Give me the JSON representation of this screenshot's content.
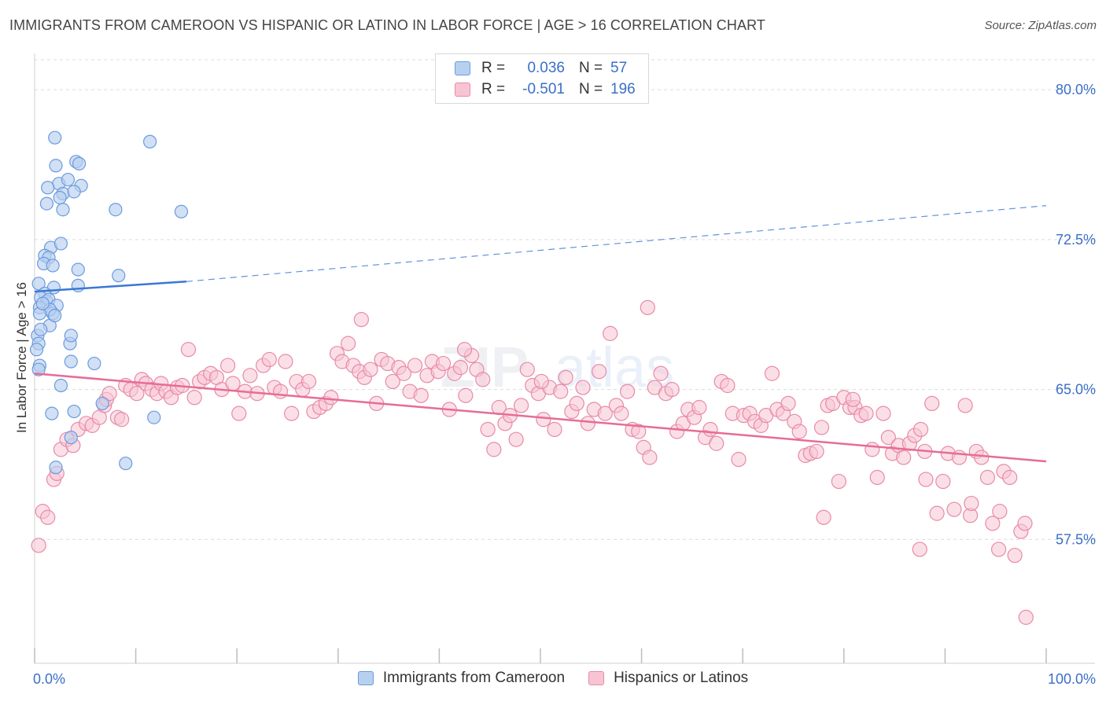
{
  "title": "IMMIGRANTS FROM CAMEROON VS HISPANIC OR LATINO IN LABOR FORCE | AGE > 16 CORRELATION CHART",
  "source": "Source: ZipAtlas.com",
  "legend": {
    "rows": [
      {
        "r_label": "R =",
        "r_value": "0.036",
        "n_label": "N =",
        "n_value": "57"
      },
      {
        "r_label": "R =",
        "r_value": "-0.501",
        "n_label": "N =",
        "n_value": "196"
      }
    ]
  },
  "bottom_legend": {
    "series1": "Immigrants from Cameroon",
    "series2": "Hispanics or Latinos"
  },
  "colors": {
    "blue": "#3a78d4",
    "blue_fill": "#b8d0f0",
    "pink": "#e76c96",
    "pink_fill": "#f8c4d4",
    "axis_text": "#3b6fc8"
  },
  "chart_data": {
    "type": "scatter",
    "title": "IMMIGRANTS FROM CAMEROON VS HISPANIC OR LATINO IN LABOR FORCE | AGE > 16 CORRELATION CHART",
    "xlabel": "",
    "ylabel": "In Labor Force | Age > 16",
    "xlim": [
      0,
      100
    ],
    "ylim": [
      51.3,
      81.5
    ],
    "x_tick_labels": [
      "0.0%",
      "100.0%"
    ],
    "y_ticks": [
      57.5,
      65.0,
      72.5,
      80.0
    ],
    "y_tick_labels": [
      "57.5%",
      "65.0%",
      "72.5%",
      "80.0%"
    ],
    "grid": true,
    "legend_position": "top-center",
    "series": [
      {
        "name": "Immigrants from Cameroon",
        "r": 0.036,
        "n": 57,
        "trend": {
          "x_solid": [
            0,
            15
          ],
          "y_solid": [
            69.9,
            70.4
          ],
          "x_dashed_end": 100,
          "y_dashed_end": 74.2
        },
        "points": [
          [
            2.0,
            77.6
          ],
          [
            11.4,
            77.4
          ],
          [
            4.1,
            76.4
          ],
          [
            2.1,
            76.2
          ],
          [
            4.4,
            76.3
          ],
          [
            2.4,
            75.3
          ],
          [
            1.3,
            75.1
          ],
          [
            3.3,
            75.5
          ],
          [
            4.6,
            75.2
          ],
          [
            1.2,
            74.3
          ],
          [
            2.8,
            74.8
          ],
          [
            3.9,
            74.9
          ],
          [
            2.5,
            74.6
          ],
          [
            2.8,
            74.0
          ],
          [
            8.0,
            74.0
          ],
          [
            14.5,
            73.9
          ],
          [
            1.6,
            72.1
          ],
          [
            2.6,
            72.3
          ],
          [
            1.0,
            71.7
          ],
          [
            1.4,
            71.6
          ],
          [
            0.9,
            71.3
          ],
          [
            1.8,
            71.2
          ],
          [
            4.3,
            71.0
          ],
          [
            8.3,
            70.7
          ],
          [
            0.4,
            70.3
          ],
          [
            1.9,
            70.1
          ],
          [
            4.3,
            70.2
          ],
          [
            1.0,
            69.8
          ],
          [
            0.6,
            69.6
          ],
          [
            1.2,
            69.4
          ],
          [
            1.4,
            69.5
          ],
          [
            0.5,
            69.1
          ],
          [
            2.2,
            69.2
          ],
          [
            1.8,
            68.8
          ],
          [
            1.5,
            69.0
          ],
          [
            0.5,
            68.8
          ],
          [
            1.5,
            68.2
          ],
          [
            0.3,
            67.7
          ],
          [
            0.4,
            67.3
          ],
          [
            3.5,
            67.3
          ],
          [
            3.6,
            67.7
          ],
          [
            0.2,
            67.0
          ],
          [
            0.5,
            66.2
          ],
          [
            3.6,
            66.4
          ],
          [
            5.9,
            66.3
          ],
          [
            0.4,
            66.0
          ],
          [
            2.6,
            65.2
          ],
          [
            1.7,
            63.8
          ],
          [
            3.9,
            63.9
          ],
          [
            6.7,
            64.3
          ],
          [
            11.8,
            63.6
          ],
          [
            3.6,
            62.6
          ],
          [
            2.1,
            61.1
          ],
          [
            9.0,
            61.3
          ],
          [
            0.8,
            69.3
          ],
          [
            2.0,
            68.7
          ],
          [
            0.6,
            68.0
          ]
        ]
      },
      {
        "name": "Hispanics or Latinos",
        "r": -0.501,
        "n": 196,
        "trend": {
          "x": [
            0,
            100
          ],
          "y": [
            65.8,
            61.4
          ]
        },
        "points": [
          [
            0.4,
            57.2
          ],
          [
            0.8,
            58.9
          ],
          [
            1.3,
            58.6
          ],
          [
            1.9,
            60.5
          ],
          [
            2.2,
            60.8
          ],
          [
            2.6,
            62.0
          ],
          [
            3.2,
            62.5
          ],
          [
            3.8,
            62.2
          ],
          [
            4.3,
            63.0
          ],
          [
            5.1,
            63.3
          ],
          [
            5.7,
            63.2
          ],
          [
            6.4,
            63.6
          ],
          [
            6.9,
            64.2
          ],
          [
            7.1,
            64.5
          ],
          [
            7.4,
            64.8
          ],
          [
            8.2,
            63.6
          ],
          [
            8.6,
            63.5
          ],
          [
            9.0,
            65.2
          ],
          [
            9.5,
            65.0
          ],
          [
            10.1,
            64.8
          ],
          [
            10.6,
            65.5
          ],
          [
            11.0,
            65.3
          ],
          [
            11.6,
            65.0
          ],
          [
            12.1,
            64.8
          ],
          [
            12.5,
            65.3
          ],
          [
            13.0,
            64.9
          ],
          [
            13.5,
            64.6
          ],
          [
            14.1,
            65.1
          ],
          [
            14.6,
            65.2
          ],
          [
            15.2,
            67.0
          ],
          [
            15.8,
            64.6
          ],
          [
            16.3,
            65.4
          ],
          [
            16.8,
            65.6
          ],
          [
            17.4,
            65.8
          ],
          [
            18.0,
            65.6
          ],
          [
            18.5,
            65.0
          ],
          [
            19.1,
            66.2
          ],
          [
            19.6,
            65.3
          ],
          [
            20.2,
            63.8
          ],
          [
            20.8,
            64.9
          ],
          [
            21.3,
            65.7
          ],
          [
            22.0,
            64.8
          ],
          [
            22.6,
            66.2
          ],
          [
            23.2,
            66.5
          ],
          [
            23.7,
            65.1
          ],
          [
            24.3,
            64.9
          ],
          [
            24.8,
            66.4
          ],
          [
            25.4,
            63.8
          ],
          [
            25.9,
            65.4
          ],
          [
            26.5,
            65.0
          ],
          [
            27.1,
            65.4
          ],
          [
            27.6,
            63.9
          ],
          [
            28.2,
            64.1
          ],
          [
            28.8,
            64.3
          ],
          [
            29.3,
            64.6
          ],
          [
            29.9,
            66.8
          ],
          [
            30.4,
            66.4
          ],
          [
            31.0,
            67.3
          ],
          [
            31.5,
            66.2
          ],
          [
            32.1,
            65.9
          ],
          [
            32.6,
            65.6
          ],
          [
            32.3,
            68.5
          ],
          [
            33.2,
            66.0
          ],
          [
            33.8,
            64.3
          ],
          [
            34.3,
            66.5
          ],
          [
            34.9,
            66.3
          ],
          [
            35.4,
            65.4
          ],
          [
            36.0,
            66.1
          ],
          [
            36.5,
            65.8
          ],
          [
            37.1,
            64.9
          ],
          [
            37.6,
            66.2
          ],
          [
            38.2,
            64.7
          ],
          [
            38.8,
            65.7
          ],
          [
            39.3,
            66.4
          ],
          [
            39.9,
            65.9
          ],
          [
            40.4,
            66.3
          ],
          [
            41.0,
            64.0
          ],
          [
            41.5,
            65.8
          ],
          [
            42.1,
            66.1
          ],
          [
            42.6,
            64.7
          ],
          [
            43.2,
            66.7
          ],
          [
            43.7,
            66.0
          ],
          [
            42.5,
            67.0
          ],
          [
            44.3,
            65.5
          ],
          [
            44.8,
            63.0
          ],
          [
            45.4,
            62.0
          ],
          [
            45.9,
            64.1
          ],
          [
            46.5,
            63.3
          ],
          [
            47.0,
            63.7
          ],
          [
            47.6,
            62.5
          ],
          [
            48.1,
            64.2
          ],
          [
            48.7,
            66.0
          ],
          [
            49.2,
            65.2
          ],
          [
            49.8,
            64.8
          ],
          [
            50.3,
            63.5
          ],
          [
            50.9,
            65.1
          ],
          [
            51.4,
            63.0
          ],
          [
            52.0,
            64.9
          ],
          [
            52.5,
            65.6
          ],
          [
            53.1,
            63.9
          ],
          [
            53.6,
            64.3
          ],
          [
            54.2,
            65.1
          ],
          [
            54.7,
            63.3
          ],
          [
            55.3,
            64.0
          ],
          [
            55.8,
            65.9
          ],
          [
            56.4,
            63.8
          ],
          [
            56.9,
            67.8
          ],
          [
            57.5,
            64.2
          ],
          [
            58.0,
            63.8
          ],
          [
            58.6,
            64.9
          ],
          [
            59.1,
            63.0
          ],
          [
            59.7,
            62.9
          ],
          [
            60.2,
            62.1
          ],
          [
            60.8,
            61.6
          ],
          [
            61.3,
            65.1
          ],
          [
            61.9,
            65.8
          ],
          [
            62.4,
            64.8
          ],
          [
            63.0,
            65.0
          ],
          [
            63.5,
            62.9
          ],
          [
            64.1,
            63.3
          ],
          [
            64.6,
            64.0
          ],
          [
            65.2,
            63.6
          ],
          [
            65.7,
            64.1
          ],
          [
            66.3,
            62.6
          ],
          [
            66.8,
            63.0
          ],
          [
            67.4,
            62.3
          ],
          [
            67.9,
            65.4
          ],
          [
            68.5,
            65.2
          ],
          [
            69.0,
            63.8
          ],
          [
            69.6,
            61.5
          ],
          [
            70.1,
            63.7
          ],
          [
            70.7,
            63.8
          ],
          [
            71.2,
            63.4
          ],
          [
            71.8,
            63.2
          ],
          [
            72.3,
            63.7
          ],
          [
            72.9,
            65.8
          ],
          [
            73.4,
            64.0
          ],
          [
            74.0,
            63.8
          ],
          [
            74.5,
            64.3
          ],
          [
            75.1,
            63.4
          ],
          [
            75.6,
            62.9
          ],
          [
            76.2,
            61.7
          ],
          [
            76.7,
            61.8
          ],
          [
            77.3,
            61.9
          ],
          [
            77.8,
            63.1
          ],
          [
            78.4,
            64.2
          ],
          [
            78.9,
            64.3
          ],
          [
            79.5,
            60.4
          ],
          [
            80.0,
            64.6
          ],
          [
            80.6,
            64.1
          ],
          [
            81.1,
            64.1
          ],
          [
            81.7,
            63.7
          ],
          [
            82.2,
            63.8
          ],
          [
            82.8,
            62.0
          ],
          [
            83.3,
            60.6
          ],
          [
            83.9,
            63.8
          ],
          [
            84.4,
            62.6
          ],
          [
            84.8,
            61.8
          ],
          [
            85.4,
            62.2
          ],
          [
            85.9,
            61.6
          ],
          [
            86.5,
            62.3
          ],
          [
            87.0,
            62.7
          ],
          [
            87.6,
            63.0
          ],
          [
            88.1,
            60.5
          ],
          [
            88.7,
            64.3
          ],
          [
            89.2,
            58.8
          ],
          [
            89.8,
            60.4
          ],
          [
            90.3,
            61.8
          ],
          [
            90.9,
            59.0
          ],
          [
            91.4,
            61.6
          ],
          [
            92.0,
            64.2
          ],
          [
            92.5,
            58.7
          ],
          [
            93.1,
            61.9
          ],
          [
            93.6,
            61.6
          ],
          [
            94.2,
            60.6
          ],
          [
            94.7,
            58.3
          ],
          [
            95.3,
            57.0
          ],
          [
            95.8,
            60.9
          ],
          [
            96.4,
            60.6
          ],
          [
            96.9,
            56.7
          ],
          [
            97.5,
            57.9
          ],
          [
            97.9,
            58.3
          ],
          [
            98.0,
            53.6
          ],
          [
            92.6,
            59.3
          ],
          [
            60.6,
            69.1
          ],
          [
            87.5,
            57.0
          ],
          [
            80.9,
            64.5
          ],
          [
            88.0,
            61.9
          ],
          [
            78.0,
            58.6
          ],
          [
            95.4,
            58.9
          ],
          [
            50.1,
            65.4
          ]
        ]
      }
    ]
  }
}
